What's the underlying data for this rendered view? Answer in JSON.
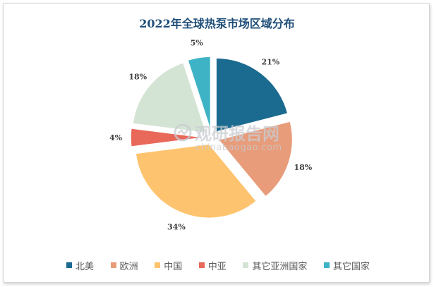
{
  "chart_data": {
    "type": "pie",
    "title": "2022年全球热泵市场区域分布",
    "categories": [
      "北美",
      "欧洲",
      "中国",
      "中亚",
      "其它亚洲国家",
      "其它国家"
    ],
    "values": [
      21,
      18,
      34,
      4,
      18,
      5
    ],
    "labels": [
      "21%",
      "18%",
      "34%",
      "4%",
      "18%",
      "5%"
    ],
    "colors": [
      "#1b6a8f",
      "#e89c7a",
      "#fec36e",
      "#e8685a",
      "#d4e4d4",
      "#3fb3c6"
    ],
    "exploded": true,
    "start_angle": "12 o'clock",
    "direction": "clockwise",
    "legend": "bottom"
  },
  "watermark": {
    "brand": "观研报告网",
    "url": "chinabaogao.com"
  }
}
